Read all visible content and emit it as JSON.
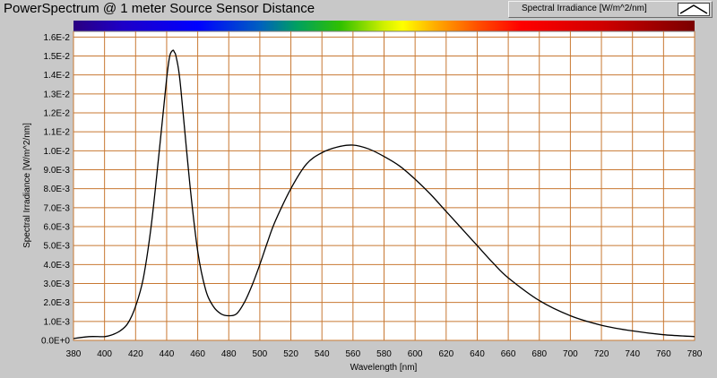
{
  "window": {
    "title": "PowerSpectrum @ 1 meter Source Sensor Distance"
  },
  "legend": {
    "label": "Spectral Irradiance [W/m^2/nm]",
    "swatch_icon": "line-swatch-icon"
  },
  "chart_data": {
    "type": "line",
    "title": "PowerSpectrum @ 1 meter Source Sensor Distance",
    "xlabel": "Wavelength [nm]",
    "ylabel": "Spectral Irradiance [W/m^2/nm]",
    "xlim": [
      380,
      780
    ],
    "ylim": [
      0,
      0.0163
    ],
    "grid": true,
    "legend_position": "top-right",
    "spectrum_bar": true,
    "grid_color": "#c87832",
    "line_color": "#000000",
    "x_ticks": [
      {
        "value": 380,
        "label": "380"
      },
      {
        "value": 400,
        "label": "400"
      },
      {
        "value": 420,
        "label": "420"
      },
      {
        "value": 440,
        "label": "440"
      },
      {
        "value": 460,
        "label": "460"
      },
      {
        "value": 480,
        "label": "480"
      },
      {
        "value": 500,
        "label": "500"
      },
      {
        "value": 520,
        "label": "520"
      },
      {
        "value": 540,
        "label": "540"
      },
      {
        "value": 560,
        "label": "560"
      },
      {
        "value": 580,
        "label": "580"
      },
      {
        "value": 600,
        "label": "600"
      },
      {
        "value": 620,
        "label": "620"
      },
      {
        "value": 640,
        "label": "640"
      },
      {
        "value": 660,
        "label": "660"
      },
      {
        "value": 680,
        "label": "680"
      },
      {
        "value": 700,
        "label": "700"
      },
      {
        "value": 720,
        "label": "720"
      },
      {
        "value": 740,
        "label": "740"
      },
      {
        "value": 760,
        "label": "760"
      },
      {
        "value": 780,
        "label": "780"
      }
    ],
    "y_ticks": [
      {
        "value": 0.0,
        "label": "0.0E+0"
      },
      {
        "value": 0.001,
        "label": "1.0E-3"
      },
      {
        "value": 0.002,
        "label": "2.0E-3"
      },
      {
        "value": 0.003,
        "label": "3.0E-3"
      },
      {
        "value": 0.004,
        "label": "4.0E-3"
      },
      {
        "value": 0.005,
        "label": "5.0E-3"
      },
      {
        "value": 0.006,
        "label": "6.0E-3"
      },
      {
        "value": 0.007,
        "label": "7.0E-3"
      },
      {
        "value": 0.008,
        "label": "8.0E-3"
      },
      {
        "value": 0.009,
        "label": "9.0E-3"
      },
      {
        "value": 0.01,
        "label": "1.0E-2"
      },
      {
        "value": 0.011,
        "label": "1.1E-2"
      },
      {
        "value": 0.012,
        "label": "1.2E-2"
      },
      {
        "value": 0.013,
        "label": "1.3E-2"
      },
      {
        "value": 0.014,
        "label": "1.4E-2"
      },
      {
        "value": 0.015,
        "label": "1.5E-2"
      },
      {
        "value": 0.016,
        "label": "1.6E-2"
      }
    ],
    "series": [
      {
        "x": [
          380,
          390,
          400,
          405,
          410,
          415,
          420,
          425,
          430,
          435,
          440,
          442,
          444,
          445,
          446,
          448,
          450,
          455,
          460,
          465,
          470,
          475,
          480,
          485,
          490,
          495,
          500,
          505,
          510,
          520,
          530,
          540,
          550,
          560,
          570,
          580,
          590,
          600,
          610,
          620,
          630,
          640,
          650,
          660,
          680,
          700,
          720,
          740,
          760,
          780
        ],
        "y": [
          0.0001,
          0.0002,
          0.0002,
          0.0003,
          0.0005,
          0.0009,
          0.0018,
          0.0033,
          0.006,
          0.0098,
          0.0138,
          0.015,
          0.0153,
          0.0152,
          0.015,
          0.0141,
          0.0125,
          0.0082,
          0.0047,
          0.0027,
          0.0018,
          0.0014,
          0.0013,
          0.0014,
          0.002,
          0.0029,
          0.004,
          0.0052,
          0.0063,
          0.008,
          0.0093,
          0.0099,
          0.0102,
          0.0103,
          0.0101,
          0.0097,
          0.0092,
          0.0085,
          0.0077,
          0.0068,
          0.0059,
          0.005,
          0.0041,
          0.0033,
          0.0021,
          0.0013,
          0.0008,
          0.0005,
          0.0003,
          0.0002
        ]
      }
    ]
  }
}
